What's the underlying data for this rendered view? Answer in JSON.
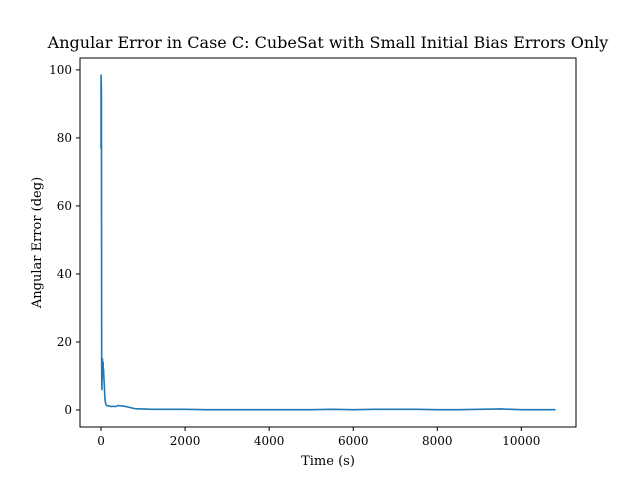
{
  "chart_data": {
    "type": "line",
    "title": "Angular Error in Case C: CubeSat with Small Initial Bias Errors Only",
    "xlabel": "Time (s)",
    "ylabel": "Angular Error (deg)",
    "xlim": [
      -500,
      11300
    ],
    "ylim": [
      -5,
      103.5
    ],
    "xticks": [
      0,
      2000,
      4000,
      6000,
      8000,
      10000
    ],
    "yticks": [
      0,
      20,
      40,
      60,
      80,
      100
    ],
    "xtick_labels": [
      "0",
      "2000",
      "4000",
      "6000",
      "8000",
      "10000"
    ],
    "ytick_labels": [
      "0",
      "20",
      "40",
      "60",
      "80",
      "100"
    ],
    "grid": false,
    "series": [
      {
        "color": "#1f77b4",
        "x": [
          0,
          1,
          2,
          3,
          4,
          5,
          6,
          7,
          8,
          9,
          10,
          12,
          14,
          16,
          18,
          20,
          22,
          24,
          26,
          28,
          30,
          35,
          40,
          45,
          50,
          55,
          60,
          70,
          80,
          90,
          100,
          120,
          150,
          200,
          250,
          300,
          350,
          400,
          500,
          600,
          700,
          800,
          900,
          1000,
          1200,
          1500,
          2000,
          2500,
          3000,
          3500,
          4000,
          4500,
          5000,
          5500,
          6000,
          6500,
          7000,
          7500,
          8000,
          8500,
          9000,
          9500,
          10000,
          10500,
          10800
        ],
        "y": [
          77,
          98.5,
          80,
          98,
          79,
          97,
          82,
          96,
          86,
          95,
          90,
          60,
          30,
          12,
          7,
          14,
          6,
          12,
          9,
          14.5,
          10,
          15,
          11,
          12,
          14,
          10,
          12,
          9,
          7,
          4,
          2.5,
          1.5,
          1.2,
          1.2,
          1.0,
          1.1,
          1.0,
          1.3,
          1.2,
          1.0,
          0.7,
          0.4,
          0.3,
          0.3,
          0.2,
          0.2,
          0.2,
          0.1,
          0.1,
          0.1,
          0.1,
          0.1,
          0.1,
          0.2,
          0.1,
          0.2,
          0.2,
          0.2,
          0.1,
          0.1,
          0.2,
          0.3,
          0.1,
          0.1,
          0.1
        ]
      }
    ]
  }
}
